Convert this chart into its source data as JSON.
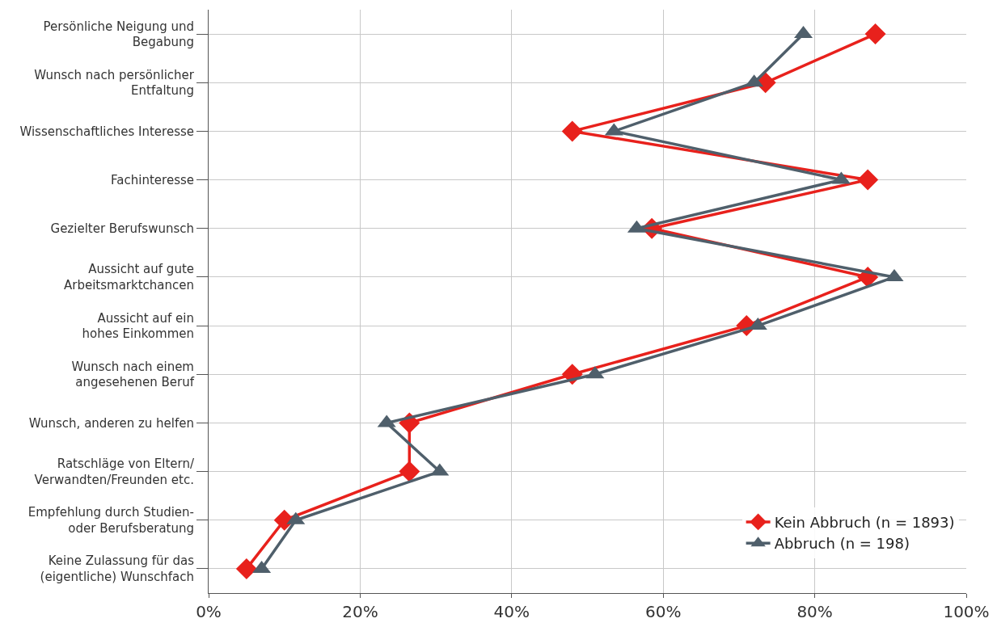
{
  "chart_data": {
    "type": "line",
    "orientation": "horizontal",
    "categories": [
      "Persönliche Neigung und\nBegabung",
      "Wunsch nach persönlicher\nEntfaltung",
      "Wissenschaftliches Interesse",
      "Fachinteresse",
      "Gezielter Berufswunsch",
      "Aussicht auf gute\nArbeitsmarktchancen",
      "Aussicht auf ein\nhohes Einkommen",
      "Wunsch nach einem\nangesehenen Beruf",
      "Wunsch, anderen zu helfen",
      "Ratschläge von Eltern/\nVerwandten/Freunden etc.",
      "Empfehlung durch Studien-\noder Berufsberatung",
      "Keine Zulassung für das\n(eigentliche) Wunschfach"
    ],
    "series": [
      {
        "name": "Kein Abbruch (n = 1893)",
        "color": "#e8211c",
        "marker": "diamond",
        "values": [
          88,
          73.5,
          48,
          87,
          58.5,
          87,
          71,
          48,
          26.5,
          26.5,
          10,
          5
        ]
      },
      {
        "name": "Abbruch (n = 198)",
        "color": "#4f5f6b",
        "marker": "triangle",
        "values": [
          78.5,
          72,
          53.5,
          83.5,
          56.5,
          90.5,
          72.5,
          51,
          23.5,
          30.5,
          11.5,
          7
        ]
      }
    ],
    "xlim": [
      0,
      100
    ],
    "xticks": [
      {
        "value": 0,
        "label": "0%"
      },
      {
        "value": 20,
        "label": "20%"
      },
      {
        "value": 40,
        "label": "40%"
      },
      {
        "value": 60,
        "label": "60%"
      },
      {
        "value": 80,
        "label": "80%"
      },
      {
        "value": 100,
        "label": "100%"
      }
    ],
    "grid": true,
    "legend": "bottom right",
    "line_style": "solid"
  }
}
